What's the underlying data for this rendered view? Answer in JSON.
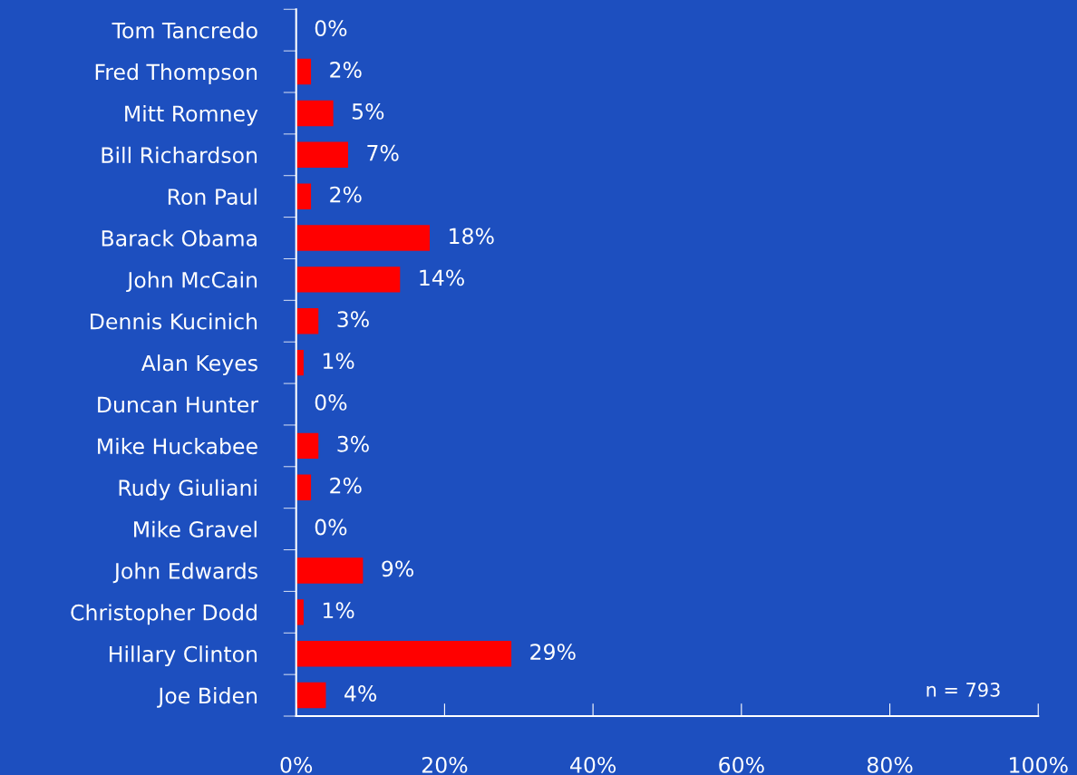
{
  "chart_data": {
    "type": "bar",
    "orientation": "horizontal",
    "categories": [
      "Tom Tancredo",
      "Fred Thompson",
      "Mitt Romney",
      "Bill Richardson",
      "Ron Paul",
      "Barack Obama",
      "John McCain",
      "Dennis Kucinich",
      "Alan Keyes",
      "Duncan Hunter",
      "Mike Huckabee",
      "Rudy Giuliani",
      "Mike Gravel",
      "John Edwards",
      "Christopher Dodd",
      "Hillary Clinton",
      "Joe Biden"
    ],
    "values": [
      0,
      2,
      5,
      7,
      2,
      18,
      14,
      3,
      1,
      0,
      3,
      2,
      0,
      9,
      1,
      29,
      4
    ],
    "value_labels": [
      "0%",
      "2%",
      "5%",
      "7%",
      "2%",
      "18%",
      "14%",
      "3%",
      "1%",
      "0%",
      "3%",
      "2%",
      "0%",
      "9%",
      "1%",
      "29%",
      "4%"
    ],
    "color": "#ff0000",
    "xlim": [
      0,
      100
    ],
    "xticks": [
      {
        "value": 0,
        "label": "0%"
      },
      {
        "value": 20,
        "label": "20%"
      },
      {
        "value": 40,
        "label": "40%"
      },
      {
        "value": 60,
        "label": "60%"
      },
      {
        "value": 80,
        "label": "80%"
      },
      {
        "value": 100,
        "label": "100%"
      }
    ],
    "grid": false,
    "annotations": [
      "n = 793"
    ]
  }
}
